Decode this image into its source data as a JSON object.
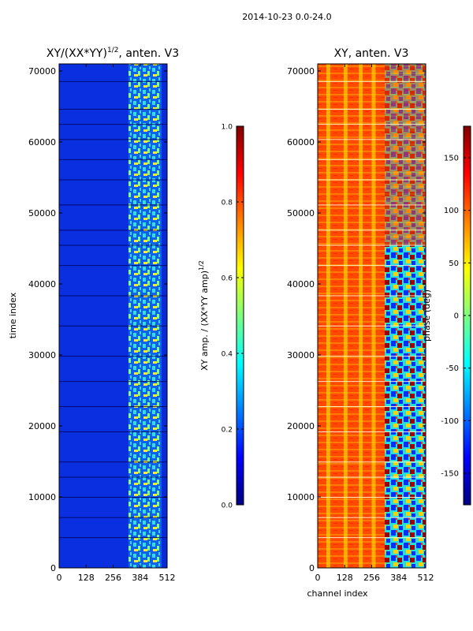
{
  "figure": {
    "suptitle": "2014-10-23 0.0-24.0"
  },
  "colors": {
    "jet": [
      "#00007f",
      "#0000ff",
      "#007fff",
      "#00ffff",
      "#7fff7f",
      "#ffff00",
      "#ff7f00",
      "#ff0000",
      "#7f0000"
    ],
    "low_band": "#0a2ad8",
    "high_band_a": "#30e0e0",
    "high_band_b": "#f0f030",
    "phase_base": "#ff4a00",
    "phase_stripe": "#ffcc00",
    "phase_mixed_a": "#0030ff",
    "phase_mixed_b": "#20e0e0",
    "phase_mixed_c": "#9a0010"
  },
  "chart_data": [
    {
      "type": "heatmap",
      "title": "XY/(XX*YY)",
      "title_exp": "1/2",
      "title_tail": ", anten. V3",
      "xlabel": "",
      "ylabel": "time index",
      "xlim": [
        0,
        512
      ],
      "ylim": [
        0,
        71000
      ],
      "xticks": [
        "0",
        "128",
        "256",
        "384",
        "512"
      ],
      "yticks": [
        "0",
        "10000",
        "20000",
        "30000",
        "40000",
        "50000",
        "60000",
        "70000"
      ],
      "colorbar": {
        "label": "XY amp. / (XX*YY amp)",
        "label_exp": "1/2",
        "range": [
          0.0,
          1.0
        ],
        "ticks": [
          "0.0",
          "0.2",
          "0.4",
          "0.6",
          "0.8",
          "1.0"
        ]
      },
      "summary": {
        "channels_0_to_330_value": 0.15,
        "channels_330_to_512_value": 0.45
      }
    },
    {
      "type": "heatmap",
      "title": "XY, anten. V3",
      "xlabel": "channel index",
      "ylabel": "",
      "xlim": [
        0,
        512
      ],
      "ylim": [
        0,
        71000
      ],
      "xticks": [
        "0",
        "128",
        "256",
        "384",
        "512"
      ],
      "yticks": [
        "0",
        "10000",
        "20000",
        "30000",
        "40000",
        "50000",
        "60000",
        "70000"
      ],
      "colorbar": {
        "label": "phase (deg)",
        "range": [
          -180,
          180
        ],
        "ticks": [
          "-150",
          "-100",
          "-50",
          "0",
          "50",
          "100",
          "150"
        ]
      },
      "summary": {
        "channels_0_to_320_phase": 120,
        "channels_320_to_512_phase": "mixed"
      }
    }
  ]
}
